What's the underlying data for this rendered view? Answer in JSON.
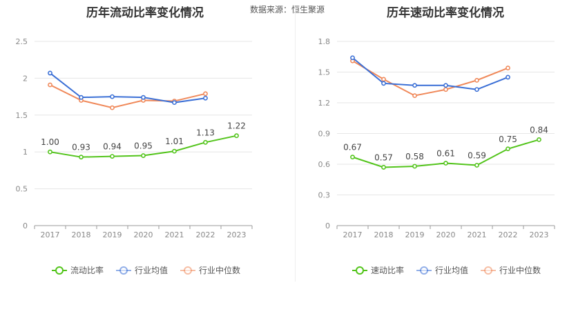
{
  "source_label": "数据来源：恒生聚源",
  "legend_labels": [
    "流动比率",
    "行业均值",
    "行业中位数"
  ],
  "chart_data": [
    {
      "type": "line",
      "title": "历年流动比率变化情况",
      "x": [
        "2017",
        "2018",
        "2019",
        "2020",
        "2021",
        "2022",
        "2023"
      ],
      "ylim": [
        0,
        2.5
      ],
      "yticks": [
        "0",
        "0.5",
        "1",
        "1.5",
        "2",
        "2.5"
      ],
      "grid": true,
      "legend_position": "bottom",
      "series": [
        {
          "name": "流动比率",
          "color": "#52c41a",
          "values": [
            1.0,
            0.93,
            0.94,
            0.95,
            1.01,
            1.13,
            1.22
          ],
          "labels": [
            "1.00",
            "0.93",
            "0.94",
            "0.95",
            "1.01",
            "1.13",
            "1.22"
          ]
        },
        {
          "name": "行业均值",
          "color": "#3a6fd6",
          "values": [
            2.07,
            1.74,
            1.75,
            1.74,
            1.67,
            1.73,
            null
          ]
        },
        {
          "name": "行业中位数",
          "color": "#f0895a",
          "values": [
            1.91,
            1.7,
            1.6,
            1.7,
            1.69,
            1.79,
            null
          ]
        }
      ]
    },
    {
      "type": "line",
      "title": "历年速动比率变化情况",
      "x": [
        "2017",
        "2018",
        "2019",
        "2020",
        "2021",
        "2022",
        "2023"
      ],
      "ylim": [
        0,
        1.8
      ],
      "yticks": [
        "0",
        "0.3",
        "0.6",
        "0.9",
        "1.2",
        "1.5",
        "1.8"
      ],
      "grid": true,
      "legend_position": "bottom",
      "series": [
        {
          "name": "速动比率",
          "color": "#52c41a",
          "values": [
            0.67,
            0.57,
            0.58,
            0.61,
            0.59,
            0.75,
            0.84
          ],
          "labels": [
            "0.67",
            "0.57",
            "0.58",
            "0.61",
            "0.59",
            "0.75",
            "0.84"
          ]
        },
        {
          "name": "行业均值",
          "color": "#3a6fd6",
          "values": [
            1.64,
            1.39,
            1.37,
            1.37,
            1.33,
            1.45,
            null
          ]
        },
        {
          "name": "行业中位数",
          "color": "#f0895a",
          "values": [
            1.61,
            1.43,
            1.27,
            1.33,
            1.42,
            1.54,
            null
          ]
        }
      ]
    }
  ]
}
